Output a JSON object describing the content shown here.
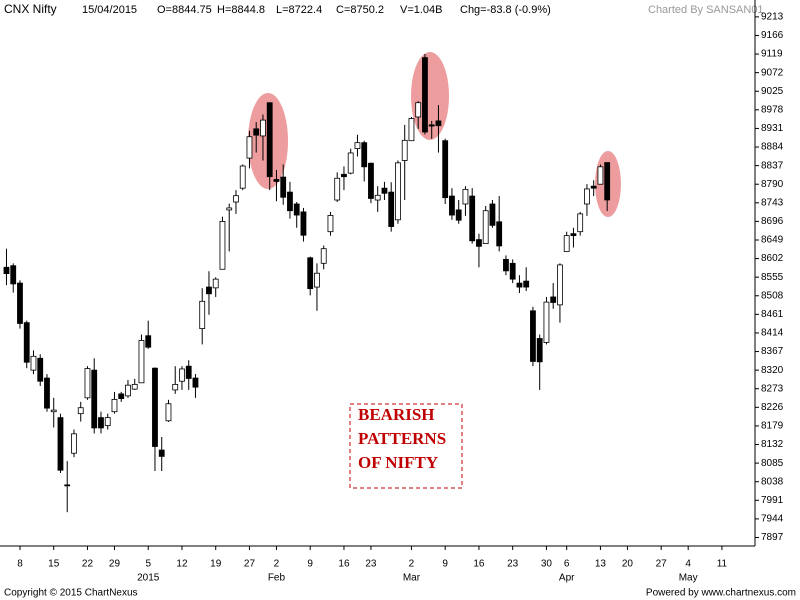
{
  "chart_data": {
    "type": "candlestick",
    "title": "CNX Nifty",
    "date": "15/04/2015",
    "header_stats": [
      "O=8844.75",
      "H=8844.8",
      "L=8722.4",
      "C=8750.2",
      "V=1.04B",
      "Chg=-83.8 (-0.9%)"
    ],
    "credit": "Charted By SANSAN01",
    "annotation": [
      "BEARISH",
      "PATTERNS",
      "OF NIFTY"
    ],
    "footer_left": "Copyright © 2015 ChartNexus",
    "footer_right": "Powered by www.chartnexus.com",
    "up_color": "#ffffff",
    "down_color": "#000000",
    "x": [
      0,
      1,
      2,
      3,
      4,
      5,
      6,
      7,
      8,
      9,
      10,
      11,
      12,
      13,
      14,
      15,
      16,
      17,
      18,
      19,
      20,
      21,
      22,
      23,
      24,
      25,
      26,
      27,
      28,
      29,
      30,
      31,
      32,
      33,
      34,
      35,
      36,
      37,
      38,
      39,
      40,
      41,
      42,
      43,
      44,
      45,
      46,
      47,
      48,
      49,
      50,
      51,
      52,
      53,
      54,
      55,
      56,
      57,
      58,
      59,
      60,
      61,
      62,
      63,
      64,
      65,
      66,
      67,
      68,
      69,
      70,
      71,
      72,
      73,
      74,
      75,
      76,
      77,
      78,
      79,
      80,
      81,
      82,
      83,
      84,
      85,
      86,
      87,
      88,
      89
    ],
    "open": [
      8580,
      8584,
      8540,
      8440,
      8320,
      8350,
      8300,
      8215,
      8200,
      8030,
      8110,
      8210,
      8250,
      8320,
      8200,
      8180,
      8215,
      8260,
      8255,
      8272,
      8288,
      8407,
      8325,
      8118,
      8192,
      8270,
      8292,
      8330,
      8300,
      8425,
      8530,
      8528,
      8575,
      8725,
      8745,
      8780,
      8856,
      8930,
      8912,
      8996,
      8802,
      8808,
      8770,
      8740,
      8720,
      8604,
      8530,
      8590,
      8670,
      8750,
      8815,
      8818,
      8880,
      8895,
      8843,
      8750,
      8780,
      8770,
      8700,
      8850,
      8900,
      8960,
      9110,
      8940,
      8950,
      8900,
      8760,
      8725,
      8740,
      8760,
      8650,
      8640,
      8740,
      8695,
      8600,
      8590,
      8540,
      8545,
      8470,
      8400,
      8390,
      8505,
      8485,
      8620,
      8665,
      8670,
      8740,
      8785,
      8790,
      8844.75
    ],
    "high": [
      8627,
      8590,
      8547,
      8445,
      8370,
      8360,
      8310,
      8250,
      8210,
      8090,
      8170,
      8240,
      8330,
      8350,
      8215,
      8210,
      8265,
      8265,
      8295,
      8298,
      8410,
      8445,
      8327,
      8151,
      8245,
      8330,
      8330,
      8345,
      8310,
      8527,
      8570,
      8555,
      8708,
      8741,
      8775,
      8840,
      8925,
      8947,
      8966,
      8996,
      8826,
      8840,
      8796,
      8745,
      8730,
      8607,
      8590,
      8635,
      8720,
      8820,
      8835,
      8880,
      8915,
      8900,
      8845,
      8785,
      8796,
      8795,
      8850,
      8940,
      8960,
      9000,
      9119,
      8950,
      8990,
      8905,
      8780,
      8750,
      8785,
      8780,
      8665,
      8735,
      8750,
      8760,
      8610,
      8600,
      8560,
      8580,
      8480,
      8410,
      8505,
      8540,
      8590,
      8670,
      8680,
      8720,
      8790,
      8800,
      8840,
      8844.8
    ],
    "low": [
      8535,
      8516,
      8425,
      8325,
      8310,
      8280,
      8215,
      8175,
      8060,
      7961,
      8100,
      8190,
      8245,
      8160,
      8160,
      8170,
      8210,
      8240,
      8250,
      8270,
      8288,
      8374,
      8065,
      8065,
      8189,
      8260,
      8270,
      8270,
      8250,
      8385,
      8460,
      8505,
      8575,
      8620,
      8715,
      8775,
      8830,
      8870,
      8850,
      8775,
      8747,
      8738,
      8703,
      8680,
      8645,
      8509,
      8470,
      8575,
      8660,
      8745,
      8775,
      8815,
      8860,
      8797,
      8742,
      8720,
      8750,
      8670,
      8690,
      8750,
      8900,
      8930,
      8916,
      8905,
      8870,
      8740,
      8700,
      8690,
      8710,
      8640,
      8580,
      8640,
      8680,
      8620,
      8560,
      8540,
      8515,
      8520,
      8330,
      8270,
      8385,
      8475,
      8440,
      8620,
      8630,
      8660,
      8710,
      8760,
      8790,
      8722.4
    ],
    "close": [
      8564,
      8538,
      8438,
      8340,
      8355,
      8292,
      8224,
      8219,
      8067,
      8029,
      8159,
      8225,
      8324,
      8174,
      8174,
      8200,
      8246,
      8248,
      8282,
      8284,
      8395,
      8378,
      8127,
      8102,
      8235,
      8284,
      8323,
      8299,
      8277,
      8494,
      8513,
      8550,
      8696,
      8730,
      8761,
      8836,
      8910,
      8914,
      8952,
      8809,
      8797,
      8757,
      8723,
      8712,
      8661,
      8526,
      8565,
      8627,
      8711,
      8805,
      8809,
      8869,
      8895,
      8834,
      8754,
      8762,
      8767,
      8683,
      8844,
      8901,
      8956,
      8996,
      8922,
      8937,
      8938,
      8756,
      8712,
      8699,
      8777,
      8647,
      8633,
      8723,
      8686,
      8634,
      8571,
      8550,
      8530,
      8530,
      8342,
      8341,
      8492,
      8491,
      8586,
      8660,
      8660,
      8715,
      8778,
      8780,
      8834,
      8750.2
    ],
    "xlim": [
      -0.96,
      110.9
    ],
    "ylim": [
      7878,
      9243
    ],
    "yticks": [
      9213,
      9166,
      9119,
      9072,
      9025,
      8978,
      8931,
      8884,
      8837,
      8790,
      8743,
      8696,
      8649,
      8602,
      8555,
      8508,
      8461,
      8414,
      8367,
      8320,
      8273,
      8226,
      8179,
      8132,
      8085,
      8038,
      7991,
      7944,
      7897
    ],
    "xticks": [
      {
        "value": 2,
        "label": "8"
      },
      {
        "value": 7,
        "label": "15"
      },
      {
        "value": 12,
        "label": "22"
      },
      {
        "value": 16,
        "label": "29"
      },
      {
        "value": 21,
        "label": "5"
      },
      {
        "value": 26,
        "label": "12"
      },
      {
        "value": 31,
        "label": "19"
      },
      {
        "value": 36,
        "label": "27"
      },
      {
        "value": 40,
        "label": "2"
      },
      {
        "value": 45,
        "label": "9"
      },
      {
        "value": 50,
        "label": "16"
      },
      {
        "value": 54,
        "label": "23"
      },
      {
        "value": 60,
        "label": "2"
      },
      {
        "value": 65,
        "label": "9"
      },
      {
        "value": 70,
        "label": "16"
      },
      {
        "value": 75,
        "label": "23"
      },
      {
        "value": 80,
        "label": "30"
      },
      {
        "value": 83,
        "label": "6"
      },
      {
        "value": 88,
        "label": "13"
      },
      {
        "value": 92,
        "label": "20"
      },
      {
        "value": 97,
        "label": "27"
      },
      {
        "value": 101,
        "label": "4"
      },
      {
        "value": 106,
        "label": "11"
      }
    ],
    "xticks_period": [
      {
        "value": 21,
        "label": "2015"
      },
      {
        "value": 40,
        "label": "Feb"
      },
      {
        "value": 60,
        "label": "Mar"
      },
      {
        "value": 83,
        "label": "Apr"
      },
      {
        "value": 101,
        "label": "May"
      }
    ]
  }
}
